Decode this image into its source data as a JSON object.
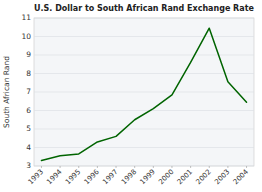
{
  "chart_data": {
    "type": "line",
    "title": "U.S. Dollar to South African Rand Exchange Rate",
    "y_label": "South African Rand",
    "categories": [
      "1993",
      "1994",
      "1995",
      "1996",
      "1997",
      "1998",
      "1999",
      "2000",
      "2001",
      "2002",
      "2003",
      "2004"
    ],
    "values": [
      3.3,
      3.55,
      3.65,
      4.3,
      4.6,
      5.5,
      6.1,
      6.85,
      8.6,
      10.45,
      7.55,
      6.45
    ],
    "color": "#006400",
    "ylim": [
      3,
      11
    ],
    "yticks": [
      3,
      4,
      5,
      6,
      7,
      8,
      9,
      10,
      11
    ],
    "grid": true
  }
}
